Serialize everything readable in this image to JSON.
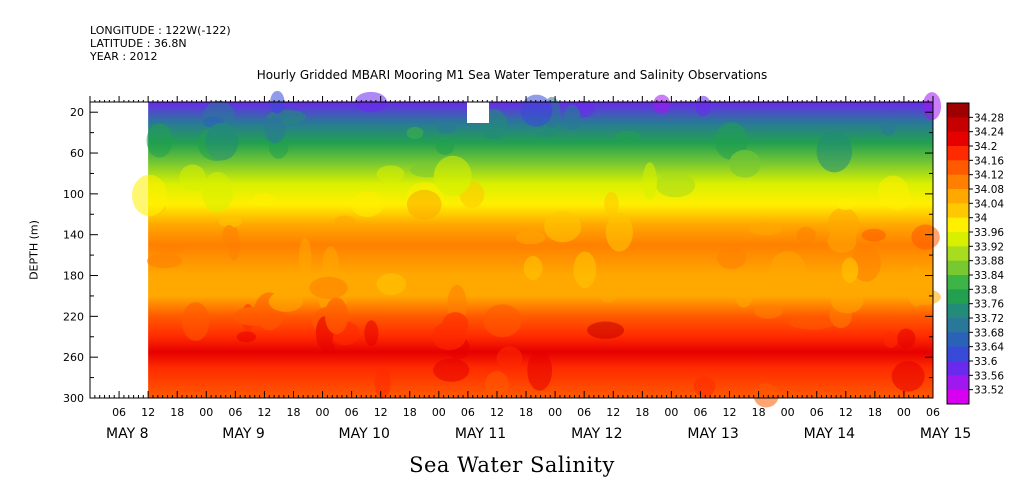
{
  "header": {
    "longitude": "LONGITUDE : 122W(-122)",
    "latitude": "LATITUDE : 36.8N",
    "year": "YEAR : 2012"
  },
  "chart_data": {
    "type": "heatmap",
    "title": "Hourly Gridded MBARI Mooring M1 Sea Water Temperature and Salinity Observations",
    "bottom_title": "Sea Water Salinity",
    "ylabel": "DEPTH (m)",
    "y_ticks": [
      "20",
      "60",
      "100",
      "140",
      "180",
      "220",
      "260",
      "300"
    ],
    "y_range": [
      10,
      300
    ],
    "x_hour_labels": [
      "06",
      "12",
      "18",
      "00",
      "06",
      "12",
      "18",
      "00",
      "06",
      "12",
      "18",
      "00",
      "06",
      "12",
      "18",
      "00",
      "06",
      "12",
      "18",
      "00",
      "06",
      "12",
      "18",
      "00",
      "06",
      "12",
      "18",
      "00",
      "06",
      "12",
      "18",
      "00"
    ],
    "x_day_labels": [
      "MAY  8",
      "MAY  9",
      "MAY 10",
      "MAY 11",
      "MAY 12",
      "MAY 13",
      "MAY 14",
      "MAY 15"
    ],
    "x_range": [
      "2012-05-08 00:00",
      "2012-05-15 06:00"
    ],
    "data_start": "2012-05-08 12:00",
    "colorbar_labels": [
      "34.28",
      "34.24",
      "34.2",
      "34.16",
      "34.12",
      "34.08",
      "34.04",
      "34",
      "33.96",
      "33.92",
      "33.88",
      "33.84",
      "33.8",
      "33.76",
      "33.72",
      "33.68",
      "33.64",
      "33.6",
      "33.56",
      "33.52"
    ],
    "colorbar_colors": [
      "#9e0000",
      "#c60000",
      "#e60000",
      "#ff2a00",
      "#ff5a00",
      "#ff8000",
      "#ffa800",
      "#ffc800",
      "#fff000",
      "#d8f000",
      "#a8dc1e",
      "#78c832",
      "#3cb446",
      "#22a050",
      "#228c78",
      "#2a7899",
      "#2a62b8",
      "#3a4ad8",
      "#6a2aee",
      "#a018f0",
      "#d800f0"
    ],
    "depth_profile": [
      {
        "depth": 10,
        "salinity": 33.62
      },
      {
        "depth": 30,
        "salinity": 33.72
      },
      {
        "depth": 50,
        "salinity": 33.82
      },
      {
        "depth": 70,
        "salinity": 33.9
      },
      {
        "depth": 90,
        "salinity": 33.96
      },
      {
        "depth": 110,
        "salinity": 34.02
      },
      {
        "depth": 130,
        "salinity": 34.07
      },
      {
        "depth": 150,
        "salinity": 34.11
      },
      {
        "depth": 180,
        "salinity": 34.09
      },
      {
        "depth": 200,
        "salinity": 34.1
      },
      {
        "depth": 220,
        "salinity": 34.16
      },
      {
        "depth": 240,
        "salinity": 34.22
      },
      {
        "depth": 255,
        "salinity": 34.25
      },
      {
        "depth": 270,
        "salinity": 34.21
      },
      {
        "depth": 300,
        "salinity": 34.18
      }
    ]
  }
}
